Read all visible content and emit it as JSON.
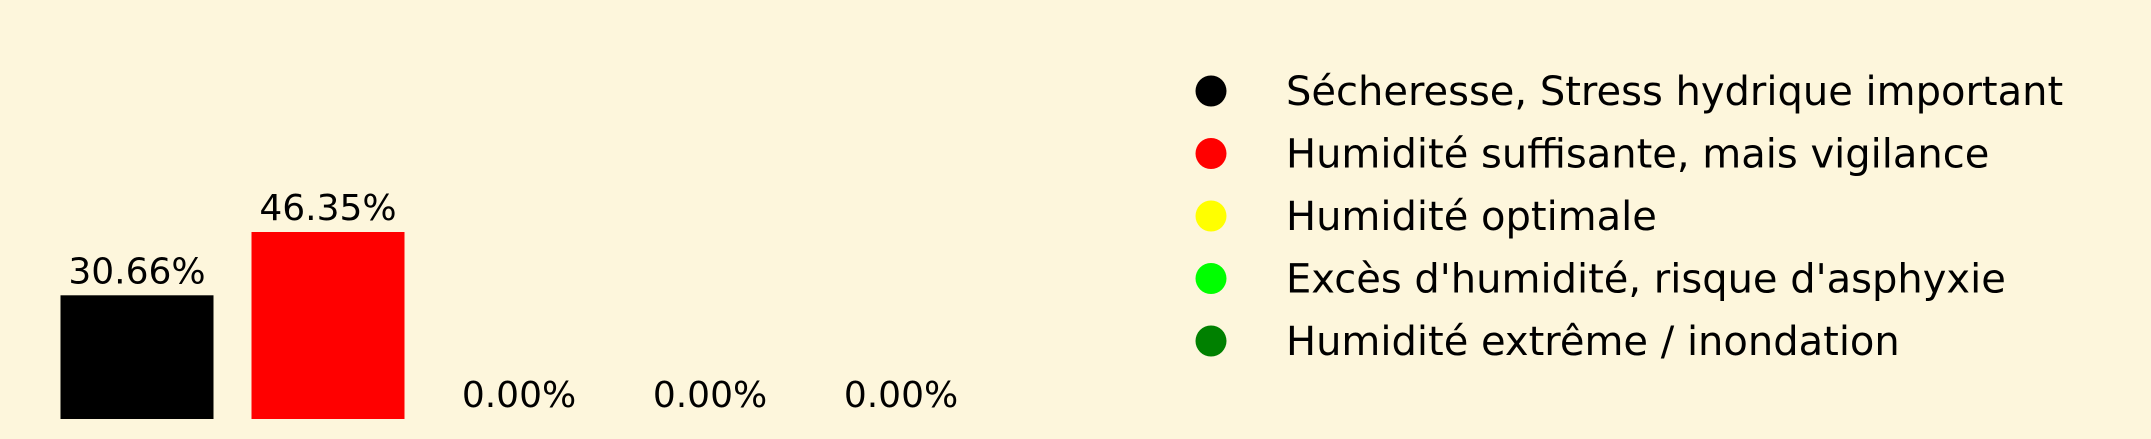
{
  "chart_data": {
    "type": "bar",
    "categories": [
      "Sécheresse, Stress hydrique important",
      "Humidité suffisante, mais vigilance",
      "Humidité optimale",
      "Excès d'humidité, risque d'asphyxie",
      "Humidité extrême / inondation"
    ],
    "values": [
      30.66,
      46.35,
      0.0,
      0.0,
      0.0
    ],
    "value_labels": [
      "30.66%",
      "46.35%",
      "0.00%",
      "0.00%",
      "0.00%"
    ],
    "colors": [
      "#000000",
      "#ff0000",
      "#ffff00",
      "#00ff00",
      "#008000"
    ],
    "ylim": [
      0,
      46.35
    ],
    "grid": false,
    "legend_position": "right",
    "background": "#fdf6dc",
    "legend": [
      {
        "label": "Sécheresse, Stress hydrique important",
        "color": "#000000"
      },
      {
        "label": "Humidité suffisante, mais vigilance",
        "color": "#ff0000"
      },
      {
        "label": "Humidité optimale",
        "color": "#ffff00"
      },
      {
        "label": "Excès d'humidité, risque d'asphyxie",
        "color": "#00ff00"
      },
      {
        "label": "Humidité extrême / inondation",
        "color": "#008000"
      }
    ]
  }
}
